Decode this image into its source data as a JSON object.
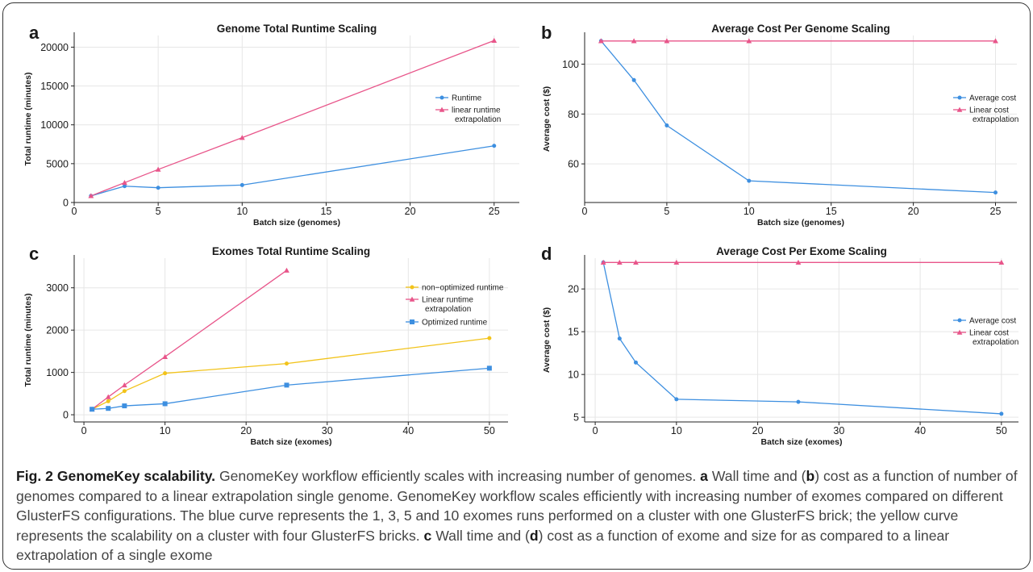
{
  "chart_data": [
    {
      "panel": "a",
      "type": "line",
      "title": "Genome Total Runtime Scaling",
      "xlabel": "Batch size (genomes)",
      "ylabel": "Total runtime (minutes)",
      "xlim": [
        0,
        26.5
      ],
      "ylim": [
        0,
        21500
      ],
      "xticks": [
        0,
        5,
        10,
        15,
        20,
        25
      ],
      "yticks": [
        0,
        5000,
        10000,
        15000,
        20000
      ],
      "grid": true,
      "legend_position": "right",
      "series": [
        {
          "name": "Runtime",
          "color": "#3d8fe0",
          "marker": "circle",
          "x": [
            1,
            3,
            5,
            10,
            25
          ],
          "y": [
            850,
            2100,
            1900,
            2250,
            7300
          ]
        },
        {
          "name": "linear runtime extrapolation",
          "legend_lines": [
            "linear runtime",
            "extrapolation"
          ],
          "color": "#e8558a",
          "marker": "triangle",
          "x": [
            1,
            3,
            5,
            10,
            25
          ],
          "y": [
            850,
            2550,
            4250,
            8350,
            20850
          ]
        }
      ]
    },
    {
      "panel": "b",
      "type": "line",
      "title": "Average Cost Per Genome Scaling",
      "xlabel": "Batch size (genomes)",
      "ylabel": "Average cost ($)",
      "xlim": [
        0,
        26.3
      ],
      "ylim": [
        44.5,
        111.5
      ],
      "xticks": [
        0,
        5,
        10,
        15,
        20,
        25
      ],
      "yticks": [
        60,
        80,
        100
      ],
      "grid": true,
      "legend_position": "right",
      "series": [
        {
          "name": "Average cost",
          "color": "#3d8fe0",
          "marker": "circle",
          "x": [
            1,
            3,
            5,
            10,
            25
          ],
          "y": [
            109.3,
            93.6,
            75.4,
            53.2,
            48.5
          ]
        },
        {
          "name": "Linear cost extrapolation",
          "legend_lines": [
            "Linear cost",
            "extrapolation"
          ],
          "color": "#e8558a",
          "marker": "triangle",
          "x": [
            1,
            3,
            5,
            10,
            25
          ],
          "y": [
            109.3,
            109.3,
            109.3,
            109.3,
            109.3
          ]
        }
      ]
    },
    {
      "panel": "c",
      "type": "line",
      "title": "Exomes Total Runtime Scaling",
      "xlabel": "Batch size (exomes)",
      "ylabel": "Total runtime (minutes)",
      "xlim": [
        -1.2,
        52.3
      ],
      "ylim": [
        -170,
        3700
      ],
      "xticks": [
        0,
        10,
        20,
        30,
        40,
        50
      ],
      "yticks": [
        0,
        1000,
        2000,
        3000
      ],
      "grid": true,
      "legend_position": "right",
      "series": [
        {
          "name": "non−optimized runtime",
          "color": "#f2c31a",
          "marker": "circle",
          "x": [
            1,
            3,
            5,
            10,
            25,
            50
          ],
          "y": [
            130,
            320,
            560,
            980,
            1210,
            1810
          ]
        },
        {
          "name": "Linear runtime extrapolation",
          "legend_lines": [
            "Linear runtime",
            "extrapolation"
          ],
          "color": "#e8558a",
          "marker": "triangle",
          "x": [
            1,
            3,
            5,
            10,
            25
          ],
          "y": [
            130,
            420,
            700,
            1370,
            3410
          ]
        },
        {
          "name": "Optimized runtime",
          "color": "#3d8fe0",
          "marker": "square",
          "x": [
            1,
            3,
            5,
            10,
            25,
            50
          ],
          "y": [
            130,
            150,
            210,
            260,
            700,
            1100
          ]
        }
      ]
    },
    {
      "panel": "d",
      "type": "line",
      "title": "Average Cost Per Exome Scaling",
      "xlabel": "Batch size (exomes)",
      "ylabel": "Average cost ($)",
      "xlim": [
        -1.3,
        52.1
      ],
      "ylim": [
        4.45,
        23.6
      ],
      "xticks": [
        0,
        10,
        20,
        30,
        40,
        50
      ],
      "yticks": [
        5,
        10,
        15,
        20
      ],
      "grid": true,
      "legend_position": "right",
      "series": [
        {
          "name": "Average cost",
          "color": "#3d8fe0",
          "marker": "circle",
          "x": [
            1,
            3,
            5,
            10,
            25,
            50
          ],
          "y": [
            23.1,
            14.2,
            11.4,
            7.1,
            6.8,
            5.4
          ]
        },
        {
          "name": "Linear cost extrapolation",
          "legend_lines": [
            "Linear cost",
            "extrapolation"
          ],
          "color": "#e8558a",
          "marker": "triangle",
          "x": [
            1,
            3,
            5,
            10,
            25,
            50
          ],
          "y": [
            23.1,
            23.1,
            23.1,
            23.1,
            23.1,
            23.1
          ]
        }
      ]
    }
  ],
  "caption": {
    "fig_label": "Fig. 2",
    "title": "GenomeKey scalability.",
    "segments": [
      {
        "t": " GenomeKey workflow efficiently scales with increasing number of genomes. ",
        "b": false
      },
      {
        "t": "a",
        "b": true
      },
      {
        "t": " Wall time and (",
        "b": false
      },
      {
        "t": "b",
        "b": true
      },
      {
        "t": ") cost as a function of number of genomes compared to a linear extrapolation single genome. GenomeKey workflow scales efficiently with increasing number of exomes compared on different GlusterFS configurations. The blue curve represents the 1, 3, 5 and 10 exomes runs performed on a cluster with one GlusterFS brick; the yellow curve represents the scalability on a cluster with four GlusterFS bricks. ",
        "b": false
      },
      {
        "t": "c",
        "b": true
      },
      {
        "t": " Wall time and (",
        "b": false
      },
      {
        "t": "d",
        "b": true
      },
      {
        "t": ") cost as a function of exome and size for as compared to a linear extrapolation of a single exome",
        "b": false
      }
    ]
  }
}
